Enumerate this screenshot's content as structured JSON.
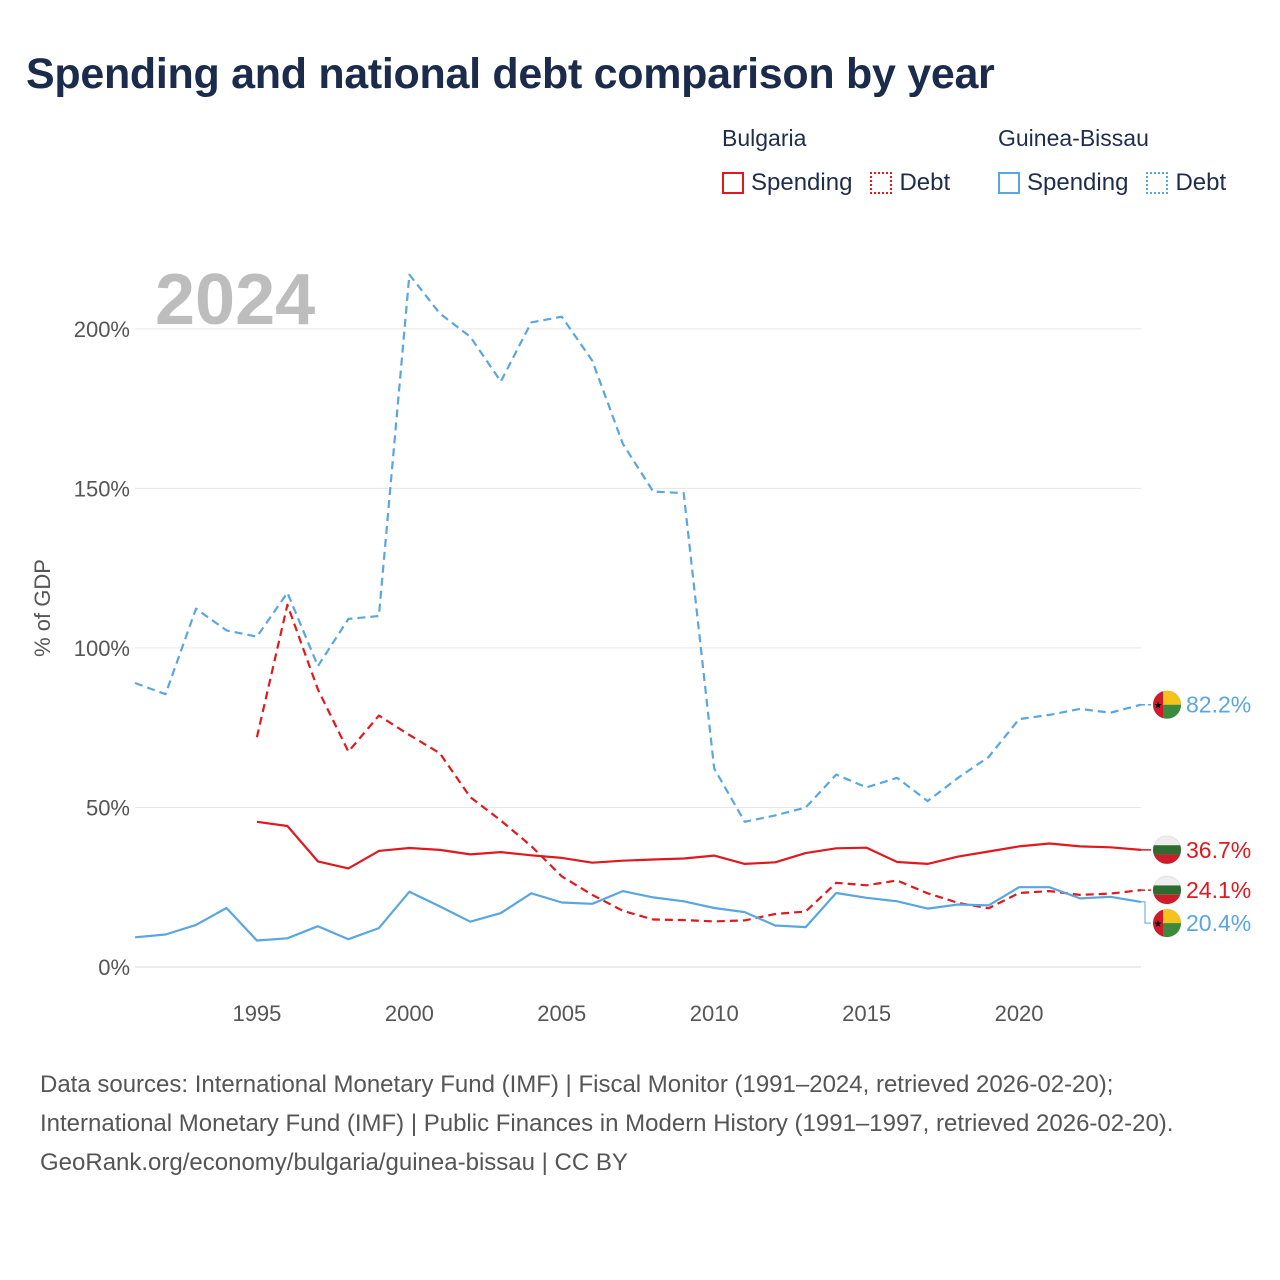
{
  "title": "Spending and national debt comparison by year",
  "legend": {
    "groups": [
      {
        "country": "Bulgaria",
        "color": "#e0191f",
        "items": [
          {
            "label": "Spending",
            "style": "solid"
          },
          {
            "label": "Debt",
            "style": "dotted"
          }
        ]
      },
      {
        "country": "Guinea-Bissau",
        "color": "#5aa6e0",
        "items": [
          {
            "label": "Spending",
            "style": "solid"
          },
          {
            "label": "Debt",
            "style": "dotted"
          }
        ]
      }
    ]
  },
  "footer": {
    "sources": "Data sources: International Monetary Fund (IMF) | Fiscal Monitor (1991–2024, retrieved 2026-02-20); International Monetary Fund (IMF) | Public Finances in Modern History (1991–1997, retrieved 2026-02-20).",
    "credit": "GeoRank.org/economy/bulgaria/guinea-bissau | CC BY"
  },
  "chart_data": {
    "type": "line",
    "year_watermark": "2024",
    "ylabel": "% of GDP",
    "xlabel": "",
    "xlim": [
      1991,
      2024
    ],
    "ylim": [
      0,
      220
    ],
    "x_ticks": [
      1995,
      2000,
      2005,
      2010,
      2015,
      2020
    ],
    "y_ticks": [
      0,
      50,
      100,
      150,
      200
    ],
    "y_tick_labels": [
      "0%",
      "50%",
      "100%",
      "150%",
      "200%"
    ],
    "grid": true,
    "series": [
      {
        "name": "Bulgaria Spending",
        "country": "Bulgaria",
        "measure": "Spending",
        "color": "#e0191f",
        "dash": "solid",
        "x": [
          1995,
          1996,
          1997,
          1998,
          1999,
          2000,
          2001,
          2002,
          2003,
          2004,
          2005,
          2006,
          2007,
          2008,
          2009,
          2010,
          2011,
          2012,
          2013,
          2014,
          2015,
          2016,
          2017,
          2018,
          2019,
          2020,
          2021,
          2022,
          2023,
          2024
        ],
        "values": [
          45.5,
          44.2,
          33.1,
          30.9,
          36.4,
          37.3,
          36.7,
          35.3,
          36.0,
          35.0,
          34.2,
          32.7,
          33.3,
          33.7,
          34.0,
          34.9,
          32.3,
          32.8,
          35.7,
          37.2,
          37.4,
          32.9,
          32.3,
          34.6,
          36.2,
          37.8,
          38.7,
          37.8,
          37.5,
          36.7
        ],
        "end_label": "36.7%",
        "end_flag": "bulgaria-flag-icon"
      },
      {
        "name": "Bulgaria Debt",
        "country": "Bulgaria",
        "measure": "Debt",
        "color": "#e0191f",
        "dash": "dashed",
        "x": [
          1995,
          1996,
          1997,
          1998,
          1999,
          2000,
          2001,
          2002,
          2003,
          2004,
          2005,
          2006,
          2007,
          2008,
          2009,
          2010,
          2011,
          2012,
          2013,
          2014,
          2015,
          2016,
          2017,
          2018,
          2019,
          2020,
          2021,
          2022,
          2023,
          2024
        ],
        "values": [
          72.0,
          113.5,
          87.0,
          67.5,
          78.8,
          72.7,
          67.0,
          53.2,
          45.9,
          37.9,
          28.4,
          22.6,
          17.6,
          14.9,
          14.7,
          14.3,
          14.6,
          16.6,
          17.4,
          26.4,
          25.6,
          27.1,
          23.1,
          20.1,
          18.4,
          23.2,
          23.8,
          22.6,
          23.0,
          24.1
        ],
        "end_label": "24.1%",
        "end_flag": "bulgaria-flag-icon"
      },
      {
        "name": "Guinea-Bissau Spending",
        "country": "Guinea-Bissau",
        "measure": "Spending",
        "color": "#5aa6e0",
        "dash": "solid",
        "x": [
          1991,
          1992,
          1993,
          1994,
          1995,
          1996,
          1997,
          1998,
          1999,
          2000,
          2001,
          2002,
          2003,
          2004,
          2005,
          2006,
          2007,
          2008,
          2009,
          2010,
          2011,
          2012,
          2013,
          2014,
          2015,
          2016,
          2017,
          2018,
          2019,
          2020,
          2021,
          2022,
          2023,
          2024
        ],
        "values": [
          9.3,
          10.2,
          13.2,
          18.5,
          8.3,
          9.0,
          12.8,
          8.7,
          12.2,
          23.6,
          19.0,
          14.2,
          16.9,
          23.1,
          20.2,
          19.8,
          23.8,
          21.8,
          20.6,
          18.5,
          17.2,
          13.0,
          12.5,
          23.2,
          21.7,
          20.6,
          18.3,
          19.6,
          19.3,
          25.0,
          25.0,
          21.5,
          22.0,
          20.4
        ],
        "end_label": "20.4%",
        "end_flag": "guinea-bissau-flag-icon"
      },
      {
        "name": "Guinea-Bissau Debt",
        "country": "Guinea-Bissau",
        "measure": "Debt",
        "color": "#5aa6e0",
        "dash": "dashed",
        "x": [
          1991,
          1992,
          1993,
          1994,
          1995,
          1996,
          1997,
          1998,
          1999,
          2000,
          2001,
          2002,
          2003,
          2004,
          2005,
          2006,
          2007,
          2008,
          2009,
          2010,
          2011,
          2012,
          2013,
          2014,
          2015,
          2016,
          2017,
          2018,
          2019,
          2020,
          2021,
          2022,
          2023,
          2024
        ],
        "values": [
          89.0,
          85.5,
          112.3,
          105.5,
          103.5,
          117.3,
          94.3,
          109.1,
          110.0,
          217.0,
          204.8,
          197.5,
          183.5,
          202.0,
          203.8,
          190.0,
          164.0,
          149.0,
          148.5,
          62.2,
          45.5,
          47.5,
          50.0,
          60.3,
          56.3,
          59.3,
          52.0,
          59.3,
          65.8,
          77.7,
          79.0,
          80.9,
          79.7,
          82.2
        ],
        "end_label": "82.2%",
        "end_flag": "guinea-bissau-flag-icon"
      }
    ]
  }
}
